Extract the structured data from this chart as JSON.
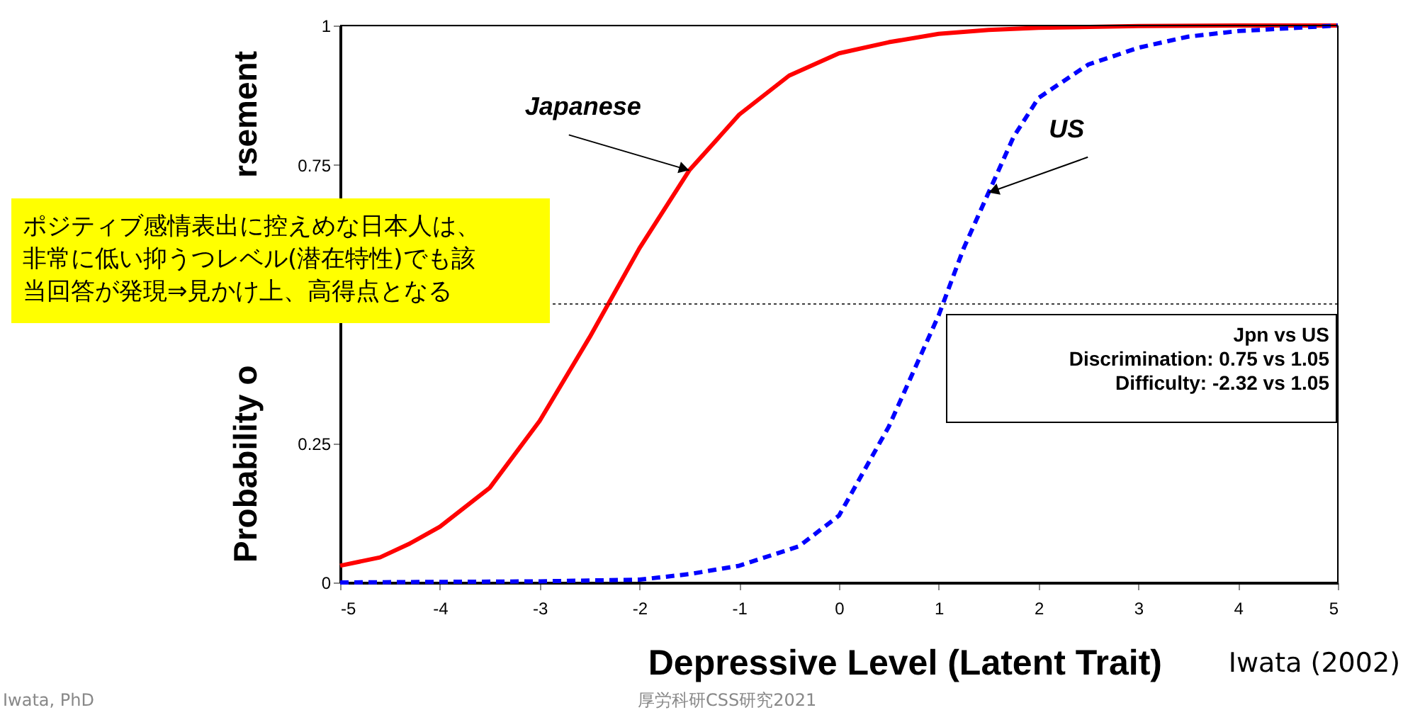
{
  "chart_data": {
    "type": "line",
    "xlabel": "Depressive Level (Latent Trait)",
    "ylabel": "Probability o",
    "xlim": [
      -5,
      5
    ],
    "xticks": [
      -5,
      -4,
      -3,
      -2,
      -1,
      0,
      1,
      2,
      3,
      4,
      5
    ],
    "ylim": [
      0,
      1
    ],
    "yticks": [
      0,
      0.25,
      {
        "value": 0.5,
        "label": null
      },
      0.75,
      1
    ],
    "grid": false,
    "series": [
      {
        "name": "Japanese",
        "color": "#ff0000",
        "line_style": "solid",
        "x": [
          -5,
          -4.6,
          -4.3,
          -4,
          -3.5,
          -3,
          -2.5,
          -2,
          -1.5,
          -1,
          -0.5,
          0,
          0.5,
          1,
          1.5,
          2,
          3,
          4,
          5
        ],
        "values": [
          0.03,
          0.045,
          0.07,
          0.1,
          0.17,
          0.29,
          0.44,
          0.6,
          0.74,
          0.84,
          0.91,
          0.95,
          0.97,
          0.985,
          0.992,
          0.996,
          0.999,
          1.0,
          1.0
        ]
      },
      {
        "name": "US",
        "color": "#0000ff",
        "line_style": "dashed",
        "x": [
          -5,
          -3,
          -2,
          -1.5,
          -1,
          -0.4,
          0,
          0.25,
          0.5,
          0.75,
          1,
          1.25,
          1.5,
          1.75,
          2,
          2.5,
          3,
          3.5,
          4,
          5
        ],
        "values": [
          0.0,
          0.002,
          0.005,
          0.015,
          0.03,
          0.065,
          0.12,
          0.2,
          0.28,
          0.38,
          0.48,
          0.6,
          0.7,
          0.8,
          0.87,
          0.93,
          0.96,
          0.98,
          0.99,
          1.0
        ]
      }
    ],
    "ref_lines": [
      {
        "axis": "y",
        "value": 0.5,
        "color": "#000000",
        "line_style": "dotted"
      }
    ],
    "annotations": [
      "ポジティブ感情表出に控えめな日本人は、非常に低い抑うつレベル(潜在特性)でも該当回答が発現⇒見かけ上、高得点となる",
      "Jpn vs US\nDiscrimination:  0.75 vs 1.05\nDifficulty: -2.32 vs 1.05",
      "Iwata (2002)",
      "Iwata, PhD",
      "厚労科研CSS研究2021",
      "rsement"
    ]
  }
}
